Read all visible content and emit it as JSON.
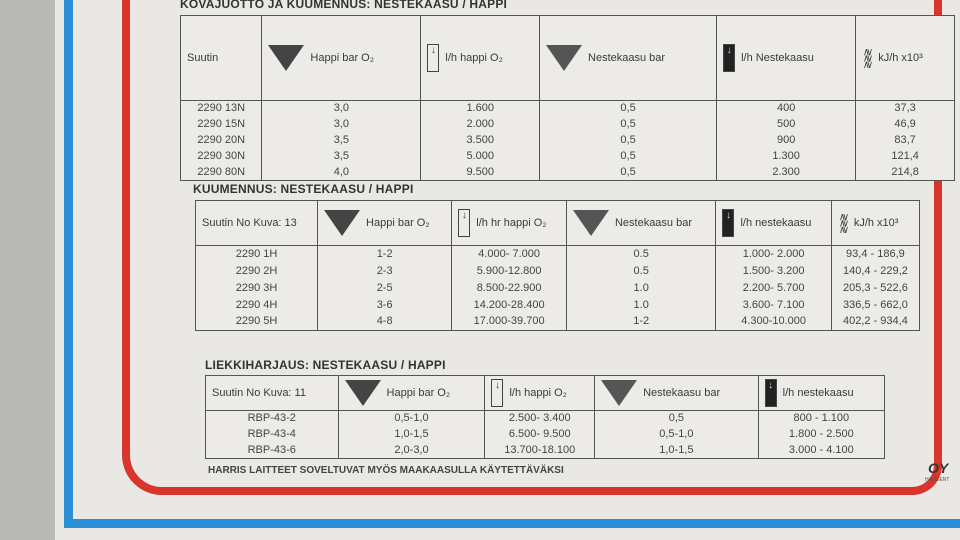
{
  "tables": [
    {
      "title": "KOVAJUOTTO JA KUUMENNUS: NESTEKAASU / HAPPI",
      "headers": [
        "Suutin",
        "Happi bar O₂",
        "l/h happi O₂",
        "Nestekaasu bar",
        "l/h Nestekaasu",
        "kJ/h x10³"
      ],
      "rows": [
        [
          "2290 13N",
          "3,0",
          "1.600",
          "0,5",
          "400",
          "37,3"
        ],
        [
          "2290 15N",
          "3,0",
          "2.000",
          "0,5",
          "500",
          "46,9"
        ],
        [
          "2290 20N",
          "3,5",
          "3.500",
          "0,5",
          "900",
          "83,7"
        ],
        [
          "2290 30N",
          "3,5",
          "5.000",
          "0,5",
          "1.300",
          "121,4"
        ],
        [
          "2290 80N",
          "4,0",
          "9.500",
          "0,5",
          "2.300",
          "214,8"
        ]
      ]
    },
    {
      "title": "KUUMENNUS: NESTEKAASU / HAPPI",
      "headers": [
        "Suutin No Kuva: 13",
        "Happi bar O₂",
        "l/h hr happi O₂",
        "Nestekaasu bar",
        "l/h nestekaasu",
        "kJ/h x10³"
      ],
      "rows": [
        [
          "2290 1H",
          "1-2",
          "4.000- 7.000",
          "0.5",
          "1.000- 2.000",
          "93,4 - 186,9"
        ],
        [
          "2290 2H",
          "2-3",
          "5.900-12.800",
          "0.5",
          "1.500- 3.200",
          "140,4 - 229,2"
        ],
        [
          "2290 3H",
          "2-5",
          "8.500-22.900",
          "1.0",
          "2.200- 5.700",
          "205,3 - 522,6"
        ],
        [
          "2290 4H",
          "3-6",
          "14.200-28.400",
          "1.0",
          "3.600- 7.100",
          "336,5 - 662,0"
        ],
        [
          "2290 5H",
          "4-8",
          "17.000-39.700",
          "1-2",
          "4.300-10.000",
          "402,2 - 934,4"
        ]
      ]
    },
    {
      "title": "LIEKKIHARJAUS: NESTEKAASU / HAPPI",
      "headers": [
        "Suutin No Kuva: 11",
        "Happi bar O₂",
        "l/h happi O₂",
        "Nestekaasu bar",
        "l/h nestekaasu"
      ],
      "rows": [
        [
          "RBP-43-2",
          "0,5-1,0",
          "2.500- 3.400",
          "0,5",
          "800 - 1.100"
        ],
        [
          "RBP-43-4",
          "1,0-1,5",
          "6.500- 9.500",
          "0,5-1,0",
          "1.800 - 2.500"
        ],
        [
          "RBP-43-6",
          "2,0-3,0",
          "13.700-18.100",
          "1,0-1,5",
          "3.000 - 4.100"
        ]
      ]
    }
  ],
  "footer": "HARRIS LAITTEET SOVELTUVAT MYÖS MAAKAASULLA KÄYTETTÄVÄKSI",
  "brand": "OY",
  "brand_sub": "HAMEENT",
  "colors": {
    "red_border": "#d9352c",
    "blue_border": "#2a8fd6"
  }
}
